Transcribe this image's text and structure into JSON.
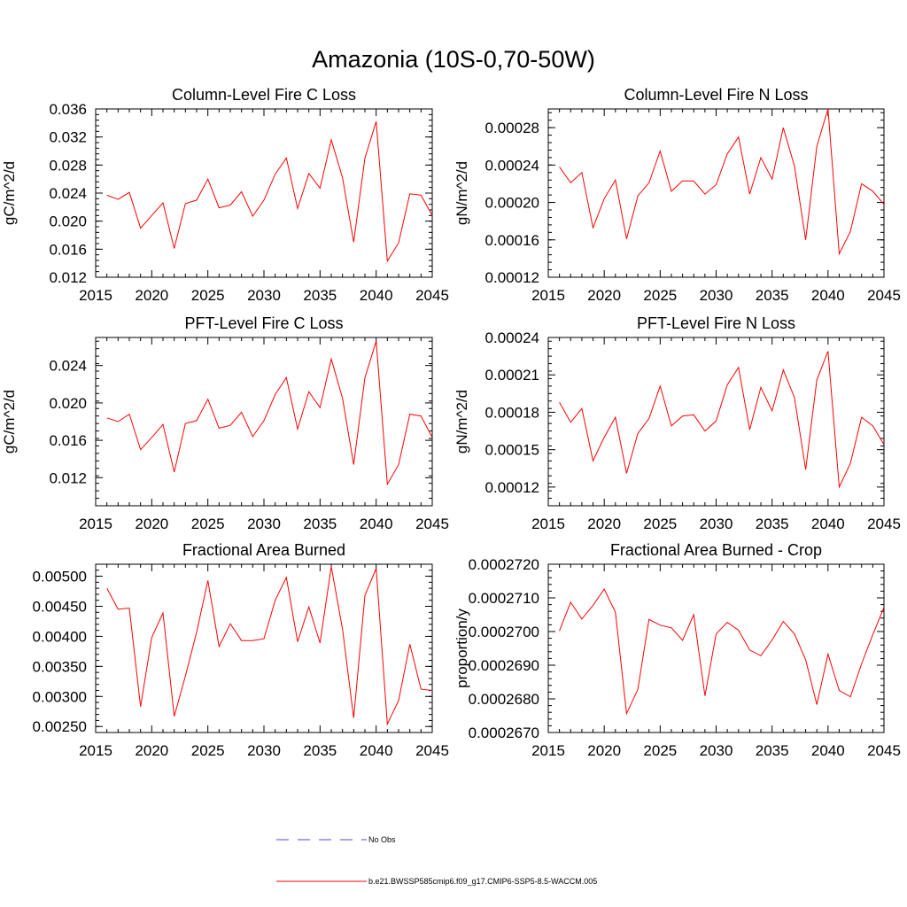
{
  "figure": {
    "title": "Amazonia (10S-0,70-50W)"
  },
  "legend": {
    "entries": [
      {
        "label": "No Obs",
        "color": "#4b4bd6",
        "dash": true
      },
      {
        "label": "b.e21.BWSSP585cmip6.f09_g17.CMIP6-SSP5-8.5-WACCM.005",
        "color": "#ff0000",
        "dash": false
      }
    ]
  },
  "chart_data": [
    {
      "type": "line",
      "title": "Column-Level Fire C Loss",
      "ylabel": "gC/m^2/d",
      "xlim": [
        2015,
        2045
      ],
      "ylim": [
        0.012,
        0.036
      ],
      "xticks": [
        "2015",
        "2020",
        "2025",
        "2030",
        "2035",
        "2040",
        "2045"
      ],
      "yticks": [
        "0.012",
        "0.016",
        "0.020",
        "0.024",
        "0.028",
        "0.032",
        "0.036"
      ],
      "series": [
        {
          "color": "#ff0000",
          "x": [
            2016,
            2017,
            2018,
            2019,
            2020,
            2021,
            2022,
            2023,
            2024,
            2025,
            2026,
            2027,
            2028,
            2029,
            2030,
            2031,
            2032,
            2033,
            2034,
            2035,
            2036,
            2037,
            2038,
            2039,
            2040,
            2041,
            2042,
            2043,
            2044,
            2045
          ],
          "values": [
            0.0237,
            0.0231,
            0.0241,
            0.019,
            0.0208,
            0.0226,
            0.0161,
            0.0225,
            0.023,
            0.026,
            0.0219,
            0.0223,
            0.0242,
            0.0207,
            0.023,
            0.0267,
            0.029,
            0.0218,
            0.0268,
            0.0247,
            0.0316,
            0.0262,
            0.017,
            0.029,
            0.0342,
            0.0143,
            0.0169,
            0.0239,
            0.0237,
            0.0208
          ]
        }
      ]
    },
    {
      "type": "line",
      "title": "Column-Level Fire N Loss",
      "ylabel": "gN/m^2/d",
      "xlim": [
        2015,
        2045
      ],
      "ylim": [
        0.00012,
        0.0003
      ],
      "xticks": [
        "2015",
        "2020",
        "2025",
        "2030",
        "2035",
        "2040",
        "2045"
      ],
      "yticks": [
        "0.00012",
        "0.00016",
        "0.00020",
        "0.00024",
        "0.00028"
      ],
      "series": [
        {
          "color": "#ff0000",
          "x": [
            2016,
            2017,
            2018,
            2019,
            2020,
            2021,
            2022,
            2023,
            2024,
            2025,
            2026,
            2027,
            2028,
            2029,
            2030,
            2031,
            2032,
            2033,
            2034,
            2035,
            2036,
            2037,
            2038,
            2039,
            2040,
            2041,
            2042,
            2043,
            2044,
            2045
          ],
          "values": [
            0.000238,
            0.000221,
            0.000232,
            0.000173,
            0.000204,
            0.000224,
            0.000161,
            0.000207,
            0.000221,
            0.000255,
            0.000212,
            0.000223,
            0.000223,
            0.000209,
            0.000219,
            0.000252,
            0.00027,
            0.000209,
            0.000248,
            0.000225,
            0.00028,
            0.000239,
            0.00016,
            0.00026,
            0.0003,
            0.000145,
            0.000169,
            0.00022,
            0.000212,
            0.000198
          ]
        }
      ]
    },
    {
      "type": "line",
      "title": "PFT-Level Fire C Loss",
      "ylabel": "gC/m^2/d",
      "xlim": [
        2015,
        2045
      ],
      "ylim": [
        0.009,
        0.027
      ],
      "xticks": [
        "2015",
        "2020",
        "2025",
        "2030",
        "2035",
        "2040",
        "2045"
      ],
      "yticks": [
        "0.012",
        "0.016",
        "0.020",
        "0.024"
      ],
      "series": [
        {
          "color": "#ff0000",
          "x": [
            2016,
            2017,
            2018,
            2019,
            2020,
            2021,
            2022,
            2023,
            2024,
            2025,
            2026,
            2027,
            2028,
            2029,
            2030,
            2031,
            2032,
            2033,
            2034,
            2035,
            2036,
            2037,
            2038,
            2039,
            2040,
            2041,
            2042,
            2043,
            2044,
            2045
          ],
          "values": [
            0.0184,
            0.018,
            0.0188,
            0.015,
            0.0163,
            0.0177,
            0.0126,
            0.0178,
            0.0181,
            0.0204,
            0.0173,
            0.0176,
            0.019,
            0.0164,
            0.0181,
            0.0209,
            0.0227,
            0.0172,
            0.0212,
            0.0195,
            0.0247,
            0.0205,
            0.0134,
            0.0227,
            0.0266,
            0.0113,
            0.0134,
            0.0188,
            0.0186,
            0.0163
          ]
        }
      ]
    },
    {
      "type": "line",
      "title": "PFT-Level Fire N Loss",
      "ylabel": "gN/m^2/d",
      "xlim": [
        2015,
        2045
      ],
      "ylim": [
        0.000105,
        0.00024
      ],
      "xticks": [
        "2015",
        "2020",
        "2025",
        "2030",
        "2035",
        "2040",
        "2045"
      ],
      "yticks": [
        "0.00012",
        "0.00015",
        "0.00018",
        "0.00021",
        "0.00024"
      ],
      "series": [
        {
          "color": "#ff0000",
          "x": [
            2016,
            2017,
            2018,
            2019,
            2020,
            2021,
            2022,
            2023,
            2024,
            2025,
            2026,
            2027,
            2028,
            2029,
            2030,
            2031,
            2032,
            2033,
            2034,
            2035,
            2036,
            2037,
            2038,
            2039,
            2040,
            2041,
            2042,
            2043,
            2044,
            2045
          ],
          "values": [
            0.000188,
            0.000172,
            0.000183,
            0.000141,
            0.00016,
            0.000176,
            0.000131,
            0.000163,
            0.000175,
            0.000201,
            0.000169,
            0.000177,
            0.000178,
            0.000165,
            0.000173,
            0.000202,
            0.000216,
            0.000166,
            0.0002,
            0.000181,
            0.000214,
            0.000192,
            0.000134,
            0.000206,
            0.000229,
            0.00012,
            0.000139,
            0.000176,
            0.000169,
            0.000154
          ]
        }
      ]
    },
    {
      "type": "line",
      "title": "Fractional Area Burned",
      "ylabel": "",
      "xlim": [
        2015,
        2045
      ],
      "ylim": [
        0.0024,
        0.0052
      ],
      "xticks": [
        "2015",
        "2020",
        "2025",
        "2030",
        "2035",
        "2040",
        "2045"
      ],
      "yticks": [
        "0.00250",
        "0.00300",
        "0.00350",
        "0.00400",
        "0.00450",
        "0.00500"
      ],
      "series": [
        {
          "color": "#ff0000",
          "x": [
            2016,
            2017,
            2018,
            2019,
            2020,
            2021,
            2022,
            2023,
            2024,
            2025,
            2026,
            2027,
            2028,
            2029,
            2030,
            2031,
            2032,
            2033,
            2034,
            2035,
            2036,
            2037,
            2038,
            2039,
            2040,
            2041,
            2042,
            2043,
            2044,
            2045
          ],
          "values": [
            0.0048,
            0.00445,
            0.00447,
            0.00283,
            0.00398,
            0.00439,
            0.00267,
            0.00334,
            0.00407,
            0.00493,
            0.00383,
            0.00421,
            0.00393,
            0.00393,
            0.00396,
            0.0046,
            0.00498,
            0.00391,
            0.00449,
            0.00389,
            0.00516,
            0.00412,
            0.00264,
            0.00468,
            0.00513,
            0.00254,
            0.00293,
            0.00387,
            0.00312,
            0.0031
          ]
        }
      ]
    },
    {
      "type": "line",
      "title": "Fractional Area Burned - Crop",
      "ylabel": "proportion/y",
      "xlim": [
        2015,
        2045
      ],
      "ylim": [
        0.000267,
        0.000272
      ],
      "xticks": [
        "2015",
        "2020",
        "2025",
        "2030",
        "2035",
        "2040",
        "2045"
      ],
      "yticks": [
        "0.0002670",
        "0.0002680",
        "0.0002690",
        "0.0002700",
        "0.0002710",
        "0.0002720"
      ],
      "series": [
        {
          "color": "#ff0000",
          "x": [
            2016,
            2017,
            2018,
            2019,
            2020,
            2021,
            2022,
            2023,
            2024,
            2025,
            2026,
            2027,
            2028,
            2029,
            2030,
            2031,
            2032,
            2033,
            2034,
            2035,
            2036,
            2037,
            2038,
            2039,
            2040,
            2041,
            2042,
            2043,
            2044,
            2045
          ],
          "values": [
            0.00027002,
            0.00027087,
            0.00027037,
            0.00027078,
            0.00027126,
            0.00027057,
            0.00026756,
            0.00026828,
            0.00027036,
            0.00027019,
            0.00027011,
            0.00026974,
            0.0002705,
            0.00026809,
            0.00026993,
            0.00027027,
            0.00027004,
            0.00026945,
            0.00026928,
            0.00026975,
            0.0002703,
            0.00026993,
            0.00026916,
            0.00026783,
            0.00026933,
            0.00026825,
            0.00026806,
            0.00026904,
            0.00026991,
            0.00027072
          ]
        }
      ]
    }
  ]
}
